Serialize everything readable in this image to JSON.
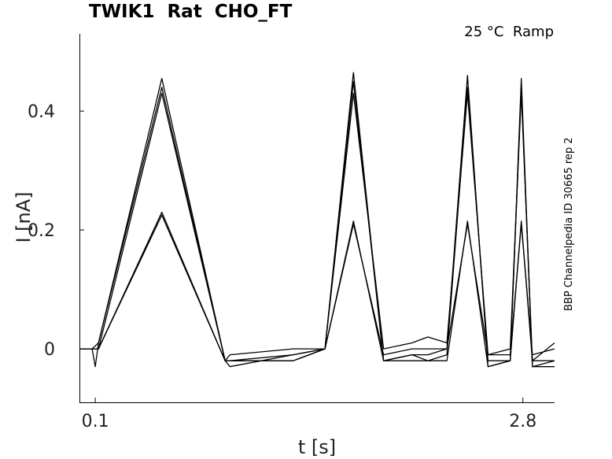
{
  "chart_data": {
    "type": "line",
    "title": "TWIK1  Rat  CHO_FT",
    "subtitle": "25 °C  Ramp",
    "side_note": "BBP Channelpedia ID 30665 rep 2",
    "xlabel": "t [s]",
    "ylabel": "I [nA]",
    "xlim": [
      0.0,
      3.0
    ],
    "ylim": [
      -0.09,
      0.53
    ],
    "x_ticks": [
      0.1,
      2.8
    ],
    "x_tick_labels": [
      "0.1",
      "2.8"
    ],
    "y_ticks": [
      0,
      0.2,
      0.4
    ],
    "y_tick_labels": [
      "0",
      "0.2",
      "0.4"
    ],
    "grid": false,
    "legend": "none",
    "color": "#000000",
    "series": [
      {
        "x": [
          0.0,
          0.08,
          0.1,
          0.12,
          0.52,
          0.92,
          0.95,
          1.35,
          1.55,
          1.73,
          1.92,
          2.1,
          2.2,
          2.32,
          2.45,
          2.58,
          2.72,
          2.79,
          2.86,
          3.0
        ],
        "values": [
          0.0,
          0.0,
          -0.03,
          0.01,
          0.455,
          -0.02,
          -0.03,
          -0.01,
          0.0,
          0.465,
          -0.02,
          -0.01,
          -0.01,
          0.0,
          0.46,
          -0.03,
          -0.02,
          0.455,
          -0.03,
          -0.02
        ]
      },
      {
        "x": [
          0.0,
          0.08,
          0.12,
          0.52,
          0.92,
          0.95,
          1.35,
          1.55,
          1.73,
          1.92,
          2.1,
          2.2,
          2.32,
          2.45,
          2.58,
          2.72,
          2.79,
          2.86,
          3.0
        ],
        "values": [
          0.0,
          0.0,
          0.01,
          0.44,
          -0.02,
          -0.02,
          -0.02,
          0.0,
          0.45,
          -0.02,
          -0.01,
          -0.02,
          -0.01,
          0.44,
          -0.02,
          -0.02,
          0.44,
          -0.03,
          -0.03
        ]
      },
      {
        "x": [
          0.0,
          0.08,
          0.12,
          0.52,
          0.92,
          0.95,
          1.35,
          1.55,
          1.73,
          1.92,
          2.1,
          2.2,
          2.32,
          2.45,
          2.58,
          2.72,
          2.79,
          2.86,
          3.0
        ],
        "values": [
          0.0,
          0.0,
          0.0,
          0.43,
          -0.02,
          -0.01,
          0.0,
          0.0,
          0.43,
          0.0,
          0.01,
          0.02,
          0.01,
          0.43,
          -0.01,
          0.0,
          0.43,
          -0.02,
          0.01
        ]
      },
      {
        "x": [
          0.0,
          0.08,
          0.12,
          0.52,
          0.92,
          0.95,
          1.35,
          1.55,
          1.73,
          1.92,
          2.1,
          2.2,
          2.32,
          2.45,
          2.58,
          2.72,
          2.79,
          2.86,
          3.0
        ],
        "values": [
          0.0,
          0.0,
          0.0,
          0.225,
          -0.02,
          -0.02,
          -0.01,
          0.0,
          0.215,
          -0.02,
          -0.02,
          -0.02,
          -0.02,
          0.215,
          -0.03,
          -0.02,
          0.215,
          -0.02,
          -0.02
        ]
      },
      {
        "x": [
          0.0,
          0.08,
          0.12,
          0.52,
          0.92,
          0.95,
          1.35,
          1.55,
          1.73,
          1.92,
          2.1,
          2.2,
          2.32,
          2.45,
          2.58,
          2.72,
          2.79,
          2.86,
          3.0
        ],
        "values": [
          0.0,
          0.0,
          0.0,
          0.23,
          -0.02,
          -0.02,
          -0.02,
          0.0,
          0.21,
          -0.01,
          0.0,
          0.0,
          0.0,
          0.21,
          -0.01,
          -0.01,
          0.21,
          -0.01,
          0.0
        ]
      }
    ]
  }
}
